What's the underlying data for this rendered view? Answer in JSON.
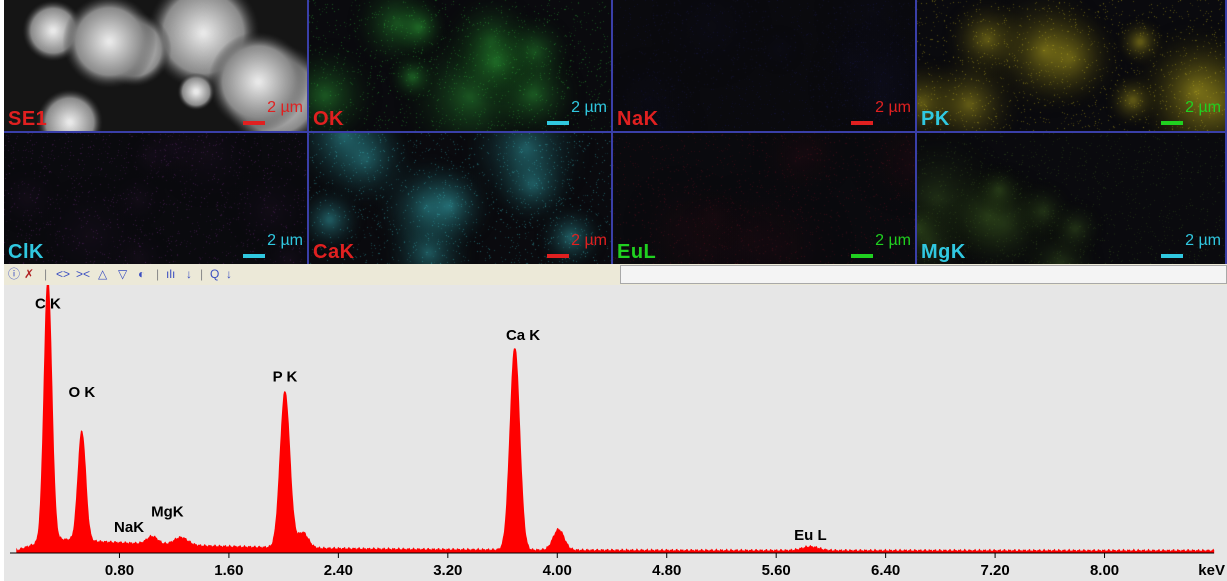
{
  "maps": {
    "scale_text": "2 µm",
    "panels": [
      {
        "label": "SE1",
        "label_color": "#e02020",
        "bar_color": "#e02020",
        "tint": "#c8c8c8"
      },
      {
        "label": "OK",
        "label_color": "#e02020",
        "bar_color": "#30c8e0",
        "tint": "#2fae3a"
      },
      {
        "label": "NaK",
        "label_color": "#e02020",
        "bar_color": "#e02020",
        "tint": "#1a1a50"
      },
      {
        "label": "PK",
        "label_color": "#30c8e0",
        "bar_color": "#20d020",
        "tint": "#c8b820"
      },
      {
        "label": "ClK",
        "label_color": "#30c8e0",
        "bar_color": "#30c8e0",
        "tint": "#6a2a7a"
      },
      {
        "label": "CaK",
        "label_color": "#e02020",
        "bar_color": "#e02020",
        "tint": "#3ab8c0"
      },
      {
        "label": "EuL",
        "label_color": "#20d020",
        "bar_color": "#20d020",
        "tint": "#6a1020"
      },
      {
        "label": "MgK",
        "label_color": "#30c8e0",
        "bar_color": "#30c8e0",
        "tint": "#3a5a20"
      }
    ]
  },
  "toolbar": {
    "icons": [
      "info-icon",
      "cursor-icon",
      "expand-icon",
      "contract-icon",
      "scale-up-icon",
      "scale-down-icon",
      "palette-icon",
      "peak-label-icon",
      "arrow-down-icon",
      "zoom-icon",
      "arrow-down-icon"
    ]
  },
  "chart_data": {
    "type": "line",
    "title": "",
    "xlabel": "keV",
    "ylabel": "",
    "xlim": [
      0.0,
      8.8
    ],
    "ylim": [
      0,
      100
    ],
    "grid": false,
    "color": "#ff0000",
    "x_ticks": [
      "0.80",
      "1.60",
      "2.40",
      "3.20",
      "4.00",
      "4.80",
      "5.60",
      "6.40",
      "7.20",
      "8.00"
    ],
    "x_tick_values": [
      0.8,
      1.6,
      2.4,
      3.2,
      4.0,
      4.8,
      5.6,
      6.4,
      7.2,
      8.0
    ],
    "peaks": [
      {
        "label": "C K",
        "energy": 0.277,
        "height": 100,
        "width": 0.028
      },
      {
        "label": "O K",
        "energy": 0.525,
        "height": 42,
        "width": 0.028
      },
      {
        "label": "NaK",
        "energy": 1.04,
        "height": 3,
        "width": 0.04
      },
      {
        "label": "MgK",
        "energy": 1.25,
        "height": 3,
        "width": 0.05
      },
      {
        "label": "P K",
        "energy": 2.01,
        "height": 60,
        "width": 0.035
      },
      {
        "label": "",
        "energy": 2.14,
        "height": 6,
        "width": 0.04
      },
      {
        "label": "Ca K",
        "energy": 3.69,
        "height": 78,
        "width": 0.035
      },
      {
        "label": "",
        "energy": 4.01,
        "height": 8,
        "width": 0.04
      },
      {
        "label": "Eu L",
        "energy": 5.85,
        "height": 1.5,
        "width": 0.06
      }
    ],
    "peak_labels": [
      {
        "text": "C K",
        "energy": 0.277,
        "y": 94
      },
      {
        "text": "O K",
        "energy": 0.525,
        "y": 60
      },
      {
        "text": "NaK",
        "energy": 0.87,
        "y": 8
      },
      {
        "text": "MgK",
        "energy": 1.15,
        "y": 14
      },
      {
        "text": "P K",
        "energy": 2.01,
        "y": 66
      },
      {
        "text": "Ca K",
        "energy": 3.75,
        "y": 82
      },
      {
        "text": "Eu L",
        "energy": 5.85,
        "y": 5
      }
    ],
    "background": {
      "start": 5.5,
      "end": 0.8
    }
  }
}
